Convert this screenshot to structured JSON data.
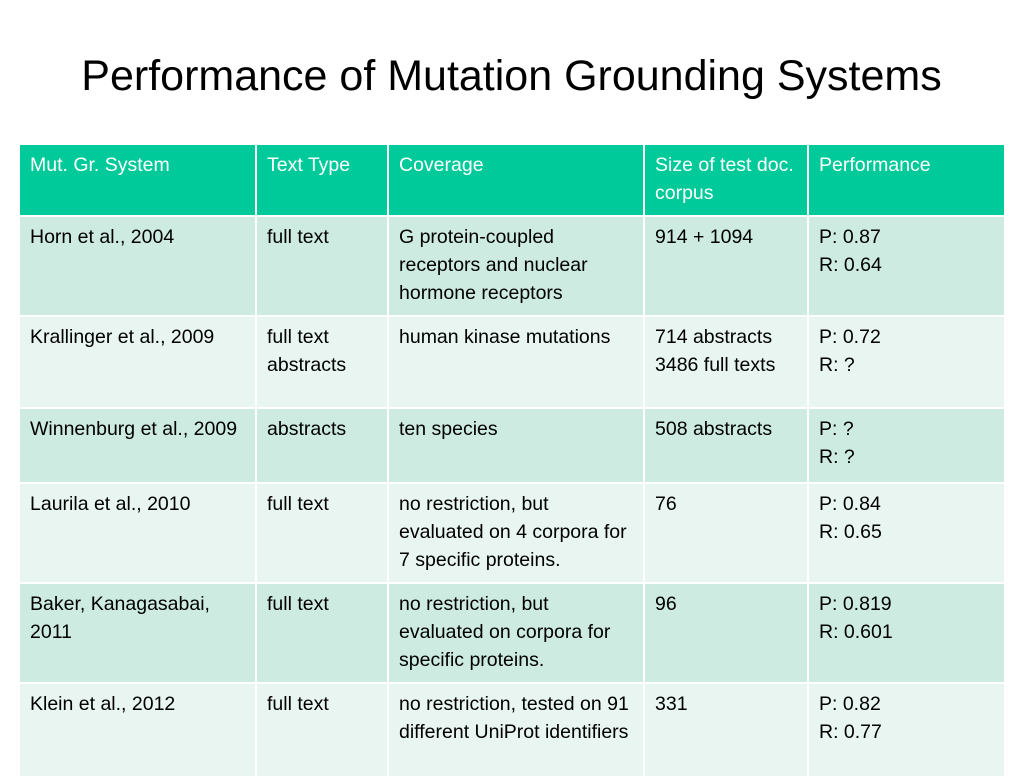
{
  "title": "Performance of Mutation Grounding Systems",
  "table": {
    "headers": [
      "Mut. Gr. System",
      "Text Type",
      "Coverage",
      "Size of test doc. corpus",
      "Performance"
    ],
    "rows": [
      [
        "Horn et al., 2004",
        "full text",
        "G protein-coupled receptors and nuclear hormone receptors",
        "914 + 1094",
        "P: 0.87\nR: 0.64"
      ],
      [
        "Krallinger et al., 2009",
        "full text\nabstracts",
        "human kinase mutations",
        "714 abstracts\n3486 full texts",
        "P: 0.72\nR: ?"
      ],
      [
        "Winnenburg et al., 2009",
        "abstracts",
        "ten species",
        "508 abstracts",
        "P: ?\nR: ?"
      ],
      [
        "Laurila et al., 2010",
        "full text",
        "no restriction, but evaluated on 4 corpora for 7 specific proteins.",
        "76",
        "P: 0.84\nR: 0.65"
      ],
      [
        "Baker, Kanagasabai, 2011",
        "full text",
        "no restriction, but evaluated on corpora for specific proteins.",
        "96",
        "P: 0.819\nR: 0.601"
      ],
      [
        "Klein et al., 2012",
        "full text",
        "no restriction, tested on 91 different UniProt identifiers",
        "331",
        "P: 0.82\nR: 0.77"
      ]
    ]
  },
  "colors": {
    "header_bg": "#00c99a",
    "row_odd_bg": "#cdebe1",
    "row_even_bg": "#e8f5f0"
  }
}
